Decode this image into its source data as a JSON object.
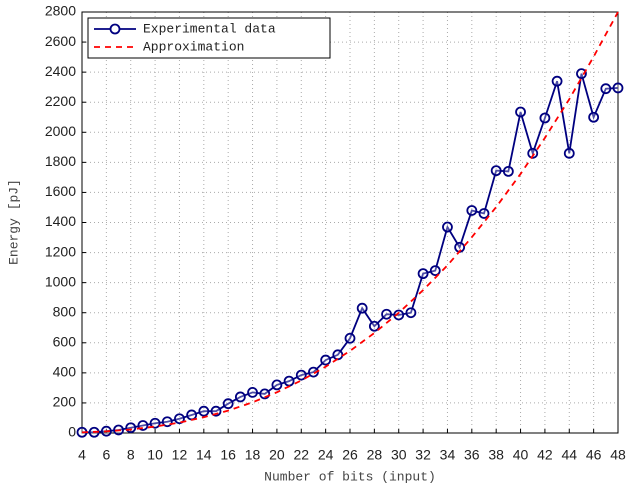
{
  "chart_data": {
    "type": "line",
    "x_label": "Number of bits (input)",
    "y_label": "Energy [pJ]",
    "xlim": [
      4,
      48
    ],
    "ylim": [
      0,
      2800
    ],
    "xticks": [
      4,
      6,
      8,
      10,
      12,
      14,
      16,
      18,
      20,
      22,
      24,
      26,
      28,
      30,
      32,
      34,
      36,
      38,
      40,
      42,
      44,
      46,
      48
    ],
    "yticks": [
      0,
      200,
      400,
      600,
      800,
      1000,
      1200,
      1400,
      1600,
      1800,
      2000,
      2200,
      2400,
      2600,
      2800
    ],
    "grid": true,
    "legend": "upper-left",
    "series": [
      {
        "name": "Experimental data",
        "color": "#000080",
        "marker": "circle",
        "x": [
          4,
          5,
          6,
          7,
          8,
          9,
          10,
          11,
          12,
          13,
          14,
          15,
          16,
          17,
          18,
          19,
          20,
          21,
          22,
          23,
          24,
          25,
          26,
          27,
          28,
          29,
          30,
          31,
          32,
          33,
          34,
          35,
          36,
          37,
          38,
          39,
          40,
          41,
          42,
          43,
          44,
          45,
          46,
          47,
          48
        ],
        "values": [
          5,
          5,
          12,
          20,
          35,
          50,
          65,
          75,
          95,
          120,
          145,
          145,
          195,
          240,
          270,
          260,
          320,
          345,
          385,
          405,
          485,
          520,
          630,
          830,
          710,
          790,
          785,
          800,
          1060,
          1080,
          1370,
          1235,
          1480,
          1460,
          1745,
          1740,
          2135,
          1860,
          2095,
          2340,
          1860,
          2390,
          2100,
          2290,
          2295
        ]
      },
      {
        "name": "Approximation",
        "color": "#ff0000",
        "dashed": true,
        "x": [
          4,
          6,
          8,
          10,
          12,
          14,
          16,
          18,
          20,
          22,
          24,
          26,
          28,
          30,
          32,
          34,
          36,
          38,
          40,
          42,
          44,
          46,
          48
        ],
        "values": [
          4,
          11,
          23,
          43,
          69,
          105,
          149,
          204,
          271,
          349,
          441,
          546,
          665,
          799,
          950,
          1115,
          1302,
          1503,
          1723,
          1963,
          2220,
          2503,
          2800
        ]
      }
    ]
  }
}
